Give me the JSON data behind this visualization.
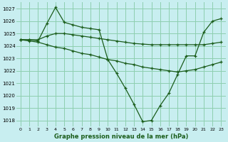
{
  "title": "Graphe pression niveau de la mer (hPa)",
  "bg_color": "#c8eef0",
  "grid_color": "#8ecfb0",
  "line_color": "#1a5c1a",
  "xlim": [
    -0.5,
    23.5
  ],
  "ylim": [
    1017.5,
    1027.5
  ],
  "yticks": [
    1018,
    1019,
    1020,
    1021,
    1022,
    1023,
    1024,
    1025,
    1026,
    1027
  ],
  "xticks": [
    0,
    1,
    2,
    3,
    4,
    5,
    6,
    7,
    8,
    9,
    10,
    11,
    12,
    13,
    14,
    15,
    16,
    17,
    18,
    19,
    20,
    21,
    22,
    23
  ],
  "series": [
    [
      1024.5,
      1024.5,
      1024.5,
      1024.8,
      1025.0,
      1025.0,
      1024.9,
      1024.8,
      1024.7,
      1024.6,
      1024.5,
      1024.4,
      1024.3,
      1024.2,
      1024.15,
      1024.1,
      1024.1,
      1024.1,
      1024.1,
      1024.1,
      1024.1,
      1024.1,
      1024.2,
      1024.3
    ],
    [
      1024.5,
      1024.5,
      1024.4,
      1025.8,
      1027.1,
      1025.9,
      1025.7,
      1025.5,
      1025.4,
      1025.3,
      1022.9,
      1021.8,
      1020.6,
      1019.3,
      1017.9,
      1018.0,
      1019.2,
      1020.2,
      1021.7,
      1023.2,
      1023.2,
      1025.1,
      1026.0,
      1026.2
    ],
    [
      1024.5,
      1024.4,
      1024.3,
      1024.1,
      1023.9,
      1023.8,
      1023.6,
      1023.4,
      1023.3,
      1023.1,
      1022.9,
      1022.8,
      1022.6,
      1022.5,
      1022.3,
      1022.2,
      1022.1,
      1022.0,
      1021.9,
      1022.0,
      1022.1,
      1022.3,
      1022.5,
      1022.7
    ]
  ]
}
